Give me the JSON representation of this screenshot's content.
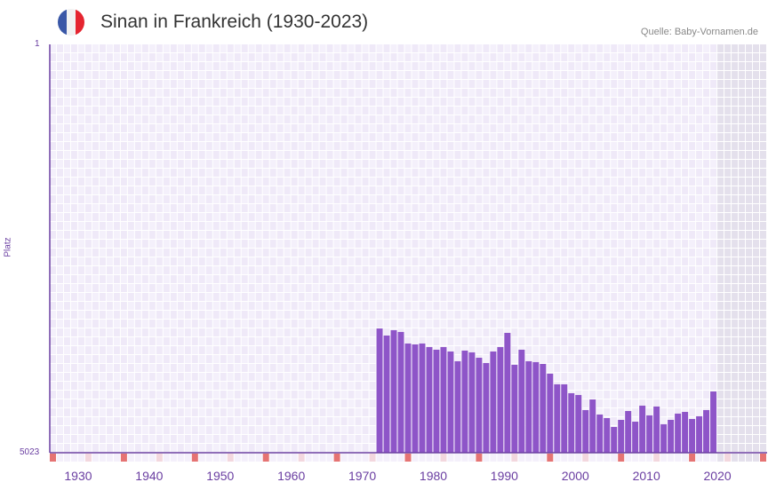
{
  "header": {
    "title": "Sinan in Frankreich (1930-2023)",
    "source": "Quelle: Baby-Vornamen.de",
    "flag_colors": [
      "#3a57a7",
      "#f2f2f2",
      "#e52530"
    ]
  },
  "chart_data": {
    "type": "bar",
    "title": "Sinan in Frankreich (1930-2023)",
    "ylabel": "Platz",
    "y_axis": "rank, inverted (1 at top)",
    "ylim": [
      1,
      5023
    ],
    "y_tick_labels": [
      "1",
      "5023"
    ],
    "xlim": [
      1928,
      2029
    ],
    "x_tick_labels": [
      "1930",
      "1940",
      "1950",
      "1960",
      "1970",
      "1980",
      "1990",
      "2000",
      "2010",
      "2020"
    ],
    "x_ticks": [
      1930,
      1940,
      1950,
      1960,
      1970,
      1980,
      1990,
      2000,
      2010,
      2020
    ],
    "future_shaded_from": 2022,
    "years": [
      1974,
      1975,
      1976,
      1977,
      1978,
      1979,
      1980,
      1981,
      1982,
      1983,
      1984,
      1985,
      1986,
      1987,
      1988,
      1989,
      1990,
      1991,
      1992,
      1993,
      1994,
      1995,
      1996,
      1997,
      1998,
      1999,
      2000,
      2001,
      2002,
      2003,
      2004,
      2005,
      2006,
      2007,
      2008,
      2009,
      2010,
      2011,
      2012,
      2013,
      2014,
      2015,
      2016,
      2017,
      2018,
      2019,
      2020,
      2021
    ],
    "values": [
      3495,
      3582,
      3516,
      3538,
      3680,
      3691,
      3680,
      3724,
      3756,
      3724,
      3778,
      3898,
      3767,
      3789,
      3855,
      3920,
      3778,
      3724,
      3549,
      3942,
      3756,
      3898,
      3909,
      3931,
      4051,
      4182,
      4182,
      4291,
      4313,
      4499,
      4368,
      4553,
      4597,
      4706,
      4619,
      4510,
      4641,
      4444,
      4564,
      4455,
      4673,
      4619,
      4542,
      4521,
      4608,
      4575,
      4499,
      4270
    ],
    "colors": {
      "bar": "#8e55c8",
      "axis": "#6a3ea1",
      "grid_a": "#efe9f8",
      "grid_b": "#f4f0fb",
      "future": "#e4e0ec",
      "marker_strong": "#e57373",
      "marker_light": "#f3d7de"
    }
  }
}
